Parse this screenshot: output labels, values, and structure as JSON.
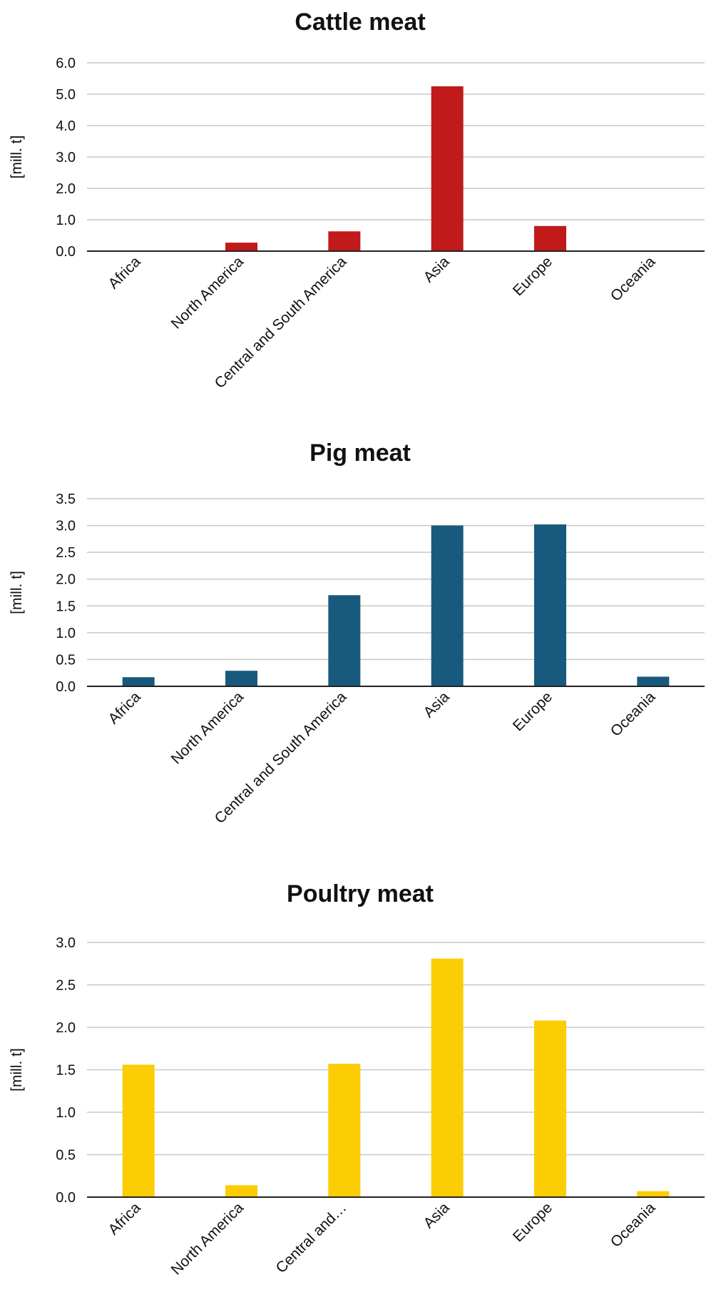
{
  "chart_data": [
    {
      "type": "bar",
      "title": "Cattle meat",
      "ylabel": "[mill. t]",
      "xlabel": "",
      "categories": [
        "Africa",
        "North America",
        "Central and South America",
        "Asia",
        "Europe",
        "Oceania"
      ],
      "values": [
        0.02,
        0.27,
        0.63,
        5.25,
        0.8,
        0.01
      ],
      "ylim": [
        0,
        6.0
      ],
      "yticks": [
        "0.0",
        "1.0",
        "2.0",
        "3.0",
        "4.0",
        "5.0",
        "6.0"
      ],
      "grid": true,
      "color": "#c01a1a"
    },
    {
      "type": "bar",
      "title": "Pig meat",
      "ylabel": "[mill. t]",
      "xlabel": "",
      "categories": [
        "Africa",
        "North America",
        "Central and South America",
        "Asia",
        "Europe",
        "Oceania"
      ],
      "values": [
        0.17,
        0.29,
        1.7,
        3.0,
        3.02,
        0.18
      ],
      "ylim": [
        0,
        3.5
      ],
      "yticks": [
        "0.0",
        "0.5",
        "1.0",
        "1.5",
        "2.0",
        "2.5",
        "3.0",
        "3.5"
      ],
      "grid": true,
      "color": "#185a7d"
    },
    {
      "type": "bar",
      "title": "Poultry meat",
      "ylabel": "[mill. t]",
      "xlabel": "",
      "categories": [
        "Africa",
        "North America",
        "Central and…",
        "Asia",
        "Europe",
        "Oceania"
      ],
      "values": [
        1.56,
        0.14,
        1.57,
        2.81,
        2.08,
        0.07
      ],
      "ylim": [
        0,
        3.0
      ],
      "yticks": [
        "0.0",
        "0.5",
        "1.0",
        "1.5",
        "2.0",
        "2.5",
        "3.0"
      ],
      "grid": true,
      "color": "#fccc04"
    }
  ]
}
